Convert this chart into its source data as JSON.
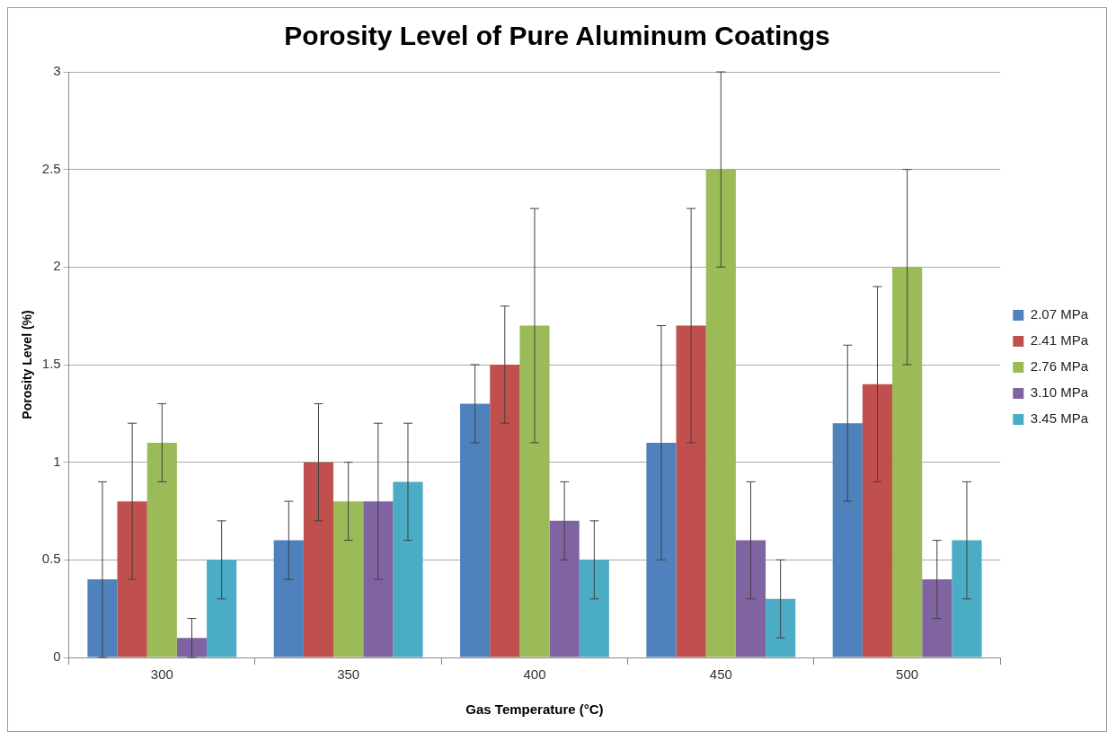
{
  "chart_data": {
    "type": "bar",
    "title": "Porosity Level of Pure Aluminum Coatings",
    "xlabel": "Gas Temperature (°C)",
    "ylabel": "Porosity Level (%)",
    "categories": [
      "300",
      "350",
      "400",
      "450",
      "500"
    ],
    "series": [
      {
        "name": "2.07 MPa",
        "color": "#4f81bd",
        "values": [
          0.4,
          0.6,
          1.3,
          1.1,
          1.2
        ],
        "errors": [
          [
            0,
            0.9
          ],
          0.2,
          0.2,
          0.6,
          0.4
        ]
      },
      {
        "name": "2.41 MPa",
        "color": "#c0504d",
        "values": [
          0.8,
          1.0,
          1.5,
          1.7,
          1.4
        ],
        "errors": [
          0.4,
          0.3,
          0.3,
          0.6,
          0.5
        ]
      },
      {
        "name": "2.76 MPa",
        "color": "#9bbb59",
        "values": [
          1.1,
          0.8,
          1.7,
          2.5,
          2.0
        ],
        "errors": [
          0.2,
          0.2,
          0.6,
          0.5,
          0.5
        ]
      },
      {
        "name": "3.10 MPa",
        "color": "#8064a2",
        "values": [
          0.1,
          0.8,
          0.7,
          0.6,
          0.4
        ],
        "errors": [
          0.1,
          0.4,
          0.2,
          0.3,
          0.2
        ]
      },
      {
        "name": "3.45 MPa",
        "color": "#4bacc6",
        "values": [
          0.5,
          0.9,
          0.5,
          0.3,
          0.6
        ],
        "errors": [
          0.2,
          0.3,
          0.2,
          0.2,
          0.3
        ]
      }
    ],
    "ylim": [
      0,
      3
    ],
    "yticks": [
      0,
      0.5,
      1,
      1.5,
      2,
      2.5,
      3
    ],
    "grid": "y",
    "legend": "right"
  }
}
